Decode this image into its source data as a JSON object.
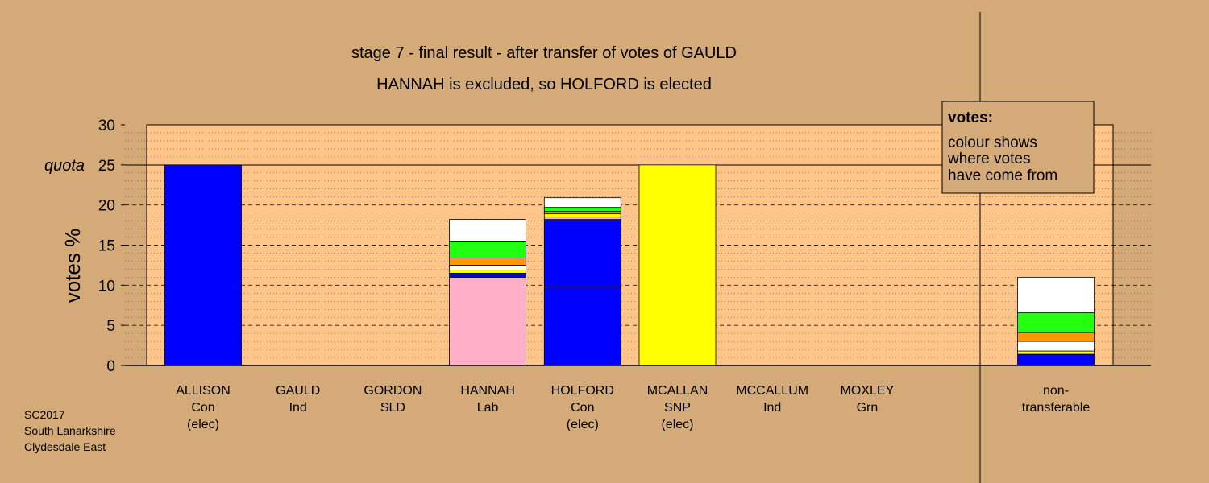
{
  "colors": {
    "background": "#d4aa78",
    "plot_area": "#fdc589",
    "legend_box": "#d4aa78"
  },
  "chart_data": {
    "type": "bar",
    "stacked": true,
    "title": "stage 7 - final result - after transfer of votes of GAULD",
    "subtitle": "HANNAH is excluded, so HOLFORD is elected",
    "ylabel": "votes %",
    "ylim": [
      0,
      30
    ],
    "yticks": [
      0,
      5,
      10,
      15,
      20,
      25,
      30
    ],
    "quota": {
      "label": "quota",
      "value": 25
    },
    "grid": true,
    "categories": [
      {
        "name": "ALLISON",
        "party": "Con",
        "status": "(elec)"
      },
      {
        "name": "GAULD",
        "party": "Ind",
        "status": ""
      },
      {
        "name": "GORDON",
        "party": "SLD",
        "status": ""
      },
      {
        "name": "HANNAH",
        "party": "Lab",
        "status": ""
      },
      {
        "name": "HOLFORD",
        "party": "Con",
        "status": "(elec)"
      },
      {
        "name": "MCALLAN",
        "party": "SNP",
        "status": "(elec)"
      },
      {
        "name": "MCCALLUM",
        "party": "Ind",
        "status": ""
      },
      {
        "name": "MOXLEY",
        "party": "Grn",
        "status": ""
      }
    ],
    "stacks": [
      [
        {
          "value": 25,
          "color": "#0000ff"
        }
      ],
      [],
      [],
      [
        {
          "value": 11.0,
          "color": "#ffb0c8"
        },
        {
          "value": 0.5,
          "color": "#0000ff"
        },
        {
          "value": 0.4,
          "color": "#ffff00"
        },
        {
          "value": 0.6,
          "color": "#ffffff"
        },
        {
          "value": 0.9,
          "color": "#ff9900"
        },
        {
          "value": 2.1,
          "color": "#22ff11"
        },
        {
          "value": 2.7,
          "color": "#ffffff"
        }
      ],
      [
        {
          "value": 9.8,
          "color": "#0000ff"
        },
        {
          "value": 8.4,
          "color": "#0000ff"
        },
        {
          "value": 0.3,
          "color": "#ffb0c8"
        },
        {
          "value": 0.4,
          "color": "#ffff00"
        },
        {
          "value": 0.3,
          "color": "#ff9900"
        },
        {
          "value": 0.5,
          "color": "#22ff11"
        },
        {
          "value": 1.2,
          "color": "#ffffff"
        }
      ],
      [
        {
          "value": 25,
          "color": "#ffff00"
        }
      ],
      [],
      []
    ],
    "non_transferable": {
      "label_lines": [
        "non-",
        "transferable"
      ],
      "stack": [
        {
          "value": 1.4,
          "color": "#0000ff"
        },
        {
          "value": 0.4,
          "color": "#ffff00"
        },
        {
          "value": 1.2,
          "color": "#ffffff"
        },
        {
          "value": 1.1,
          "color": "#ff9900"
        },
        {
          "value": 2.5,
          "color": "#22ff11"
        },
        {
          "value": 4.4,
          "color": "#ffffff"
        }
      ]
    },
    "legend": {
      "heading": "votes:",
      "lines": [
        "colour shows",
        "where votes",
        "have come from"
      ]
    }
  },
  "source": {
    "lines": [
      "SC2017",
      "South Lanarkshire",
      "Clydesdale East"
    ]
  }
}
